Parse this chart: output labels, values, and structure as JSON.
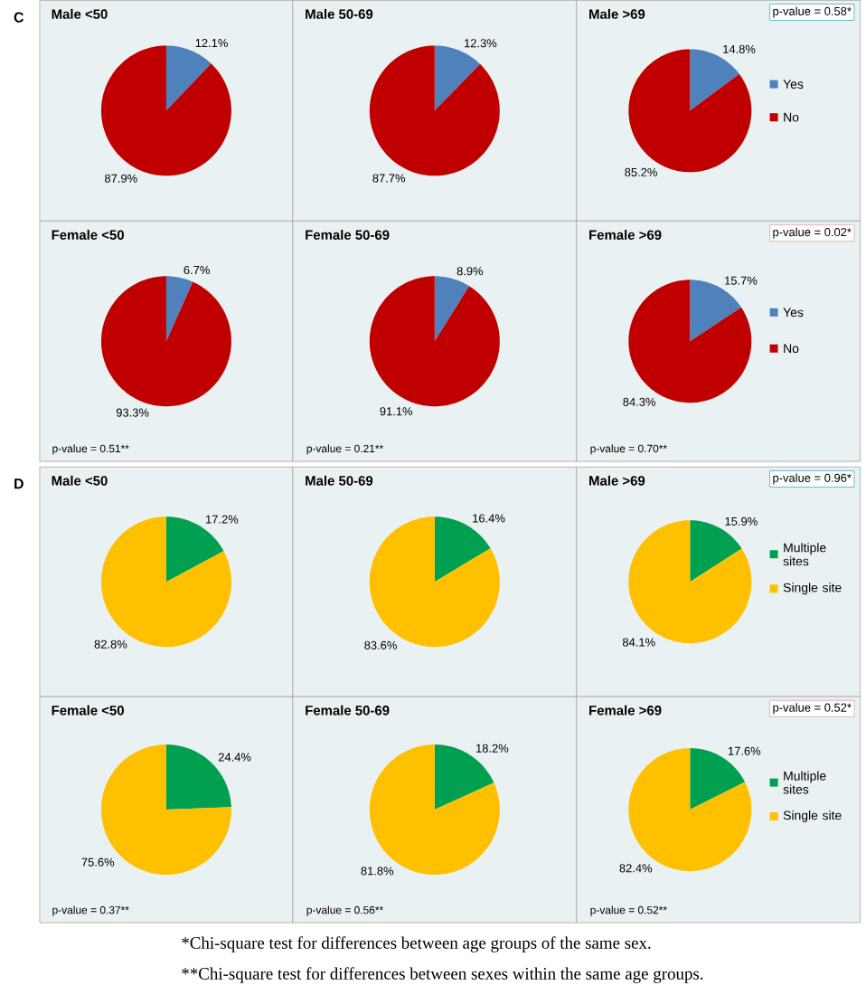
{
  "chart_data": [
    {
      "type": "other",
      "title": "C"
    },
    {
      "type": "pie",
      "title": "Male <50",
      "categories": [
        null,
        null
      ],
      "values": [
        12.1,
        87.9
      ],
      "colors": [
        "#4f81bd",
        "#c00000"
      ],
      "value_labels": [
        "12.1%",
        "87.9%"
      ]
    },
    {
      "type": "pie",
      "title": "Male 50-69",
      "categories": [
        null,
        null
      ],
      "values": [
        12.3,
        87.7
      ],
      "colors": [
        "#4f81bd",
        "#c00000"
      ],
      "value_labels": [
        "12.3%",
        "87.7%"
      ]
    },
    {
      "type": "pie",
      "title": "Male >69",
      "categories": [
        "Yes",
        "No"
      ],
      "values": [
        14.8,
        85.2
      ],
      "colors": [
        "#4f81bd",
        "#c00000"
      ],
      "value_labels": [
        "14.8%",
        "85.2%"
      ],
      "legend": "right",
      "annotations": [
        "p-value = 0.58*"
      ]
    },
    {
      "type": "pie",
      "title": "Female <50",
      "categories": [
        null,
        null
      ],
      "values": [
        6.7,
        93.3
      ],
      "colors": [
        "#4f81bd",
        "#c00000"
      ],
      "value_labels": [
        "6.7%",
        "93.3%"
      ],
      "annotations": [
        "p-value = 0.51**"
      ]
    },
    {
      "type": "pie",
      "title": "Female 50-69",
      "categories": [
        null,
        null
      ],
      "values": [
        8.9,
        91.1
      ],
      "colors": [
        "#4f81bd",
        "#c00000"
      ],
      "value_labels": [
        "8.9%",
        "91.1%"
      ],
      "annotations": [
        "p-value = 0.21**"
      ]
    },
    {
      "type": "pie",
      "title": "Female >69",
      "categories": [
        "Yes",
        "No"
      ],
      "values": [
        15.7,
        84.3
      ],
      "colors": [
        "#4f81bd",
        "#c00000"
      ],
      "value_labels": [
        "15.7%",
        "84.3%"
      ],
      "legend": "right",
      "annotations": [
        "p-value = 0.70**",
        "p-value = 0.02*"
      ]
    },
    {
      "type": "other",
      "title": "D"
    },
    {
      "type": "pie",
      "title": "Male <50",
      "categories": [
        null,
        null
      ],
      "values": [
        17.2,
        82.8
      ],
      "colors": [
        "#00a050",
        "#ffc000"
      ],
      "value_labels": [
        "17.2%",
        "82.8%"
      ]
    },
    {
      "type": "pie",
      "title": "Male 50-69",
      "categories": [
        null,
        null
      ],
      "values": [
        16.4,
        83.6
      ],
      "colors": [
        "#00a050",
        "#ffc000"
      ],
      "value_labels": [
        "16.4%",
        "83.6%"
      ]
    },
    {
      "type": "pie",
      "title": "Male >69",
      "categories": [
        "Multiple sites",
        "Single site"
      ],
      "values": [
        15.9,
        84.1
      ],
      "colors": [
        "#00a050",
        "#ffc000"
      ],
      "value_labels": [
        "15.9%",
        "84.1%"
      ],
      "legend": "right",
      "annotations": [
        "p-value = 0.96*"
      ]
    },
    {
      "type": "pie",
      "title": "Female <50",
      "categories": [
        null,
        null
      ],
      "values": [
        24.4,
        75.6
      ],
      "colors": [
        "#00a050",
        "#ffc000"
      ],
      "value_labels": [
        "24.4%",
        "75.6%"
      ],
      "annotations": [
        "p-value = 0.37**"
      ]
    },
    {
      "type": "pie",
      "title": "Female 50-69",
      "categories": [
        null,
        null
      ],
      "values": [
        18.2,
        81.8
      ],
      "colors": [
        "#00a050",
        "#ffc000"
      ],
      "value_labels": [
        "18.2%",
        "81.8%"
      ],
      "annotations": [
        "p-value = 0.56**"
      ]
    },
    {
      "type": "pie",
      "title": "Female >69",
      "categories": [
        "Multiple sites",
        "Single site"
      ],
      "values": [
        17.6,
        82.4
      ],
      "colors": [
        "#00a050",
        "#ffc000"
      ],
      "value_labels": [
        "17.6%",
        "82.4%"
      ],
      "legend": "right",
      "annotations": [
        "p-value = 0.52**",
        "p-value = 0.52*"
      ]
    },
    {
      "type": "other",
      "annotations": [
        "*Chi-square test for differences between age groups of the same sex.",
        "**Chi-square test for differences between sexes within the same age groups."
      ]
    }
  ]
}
